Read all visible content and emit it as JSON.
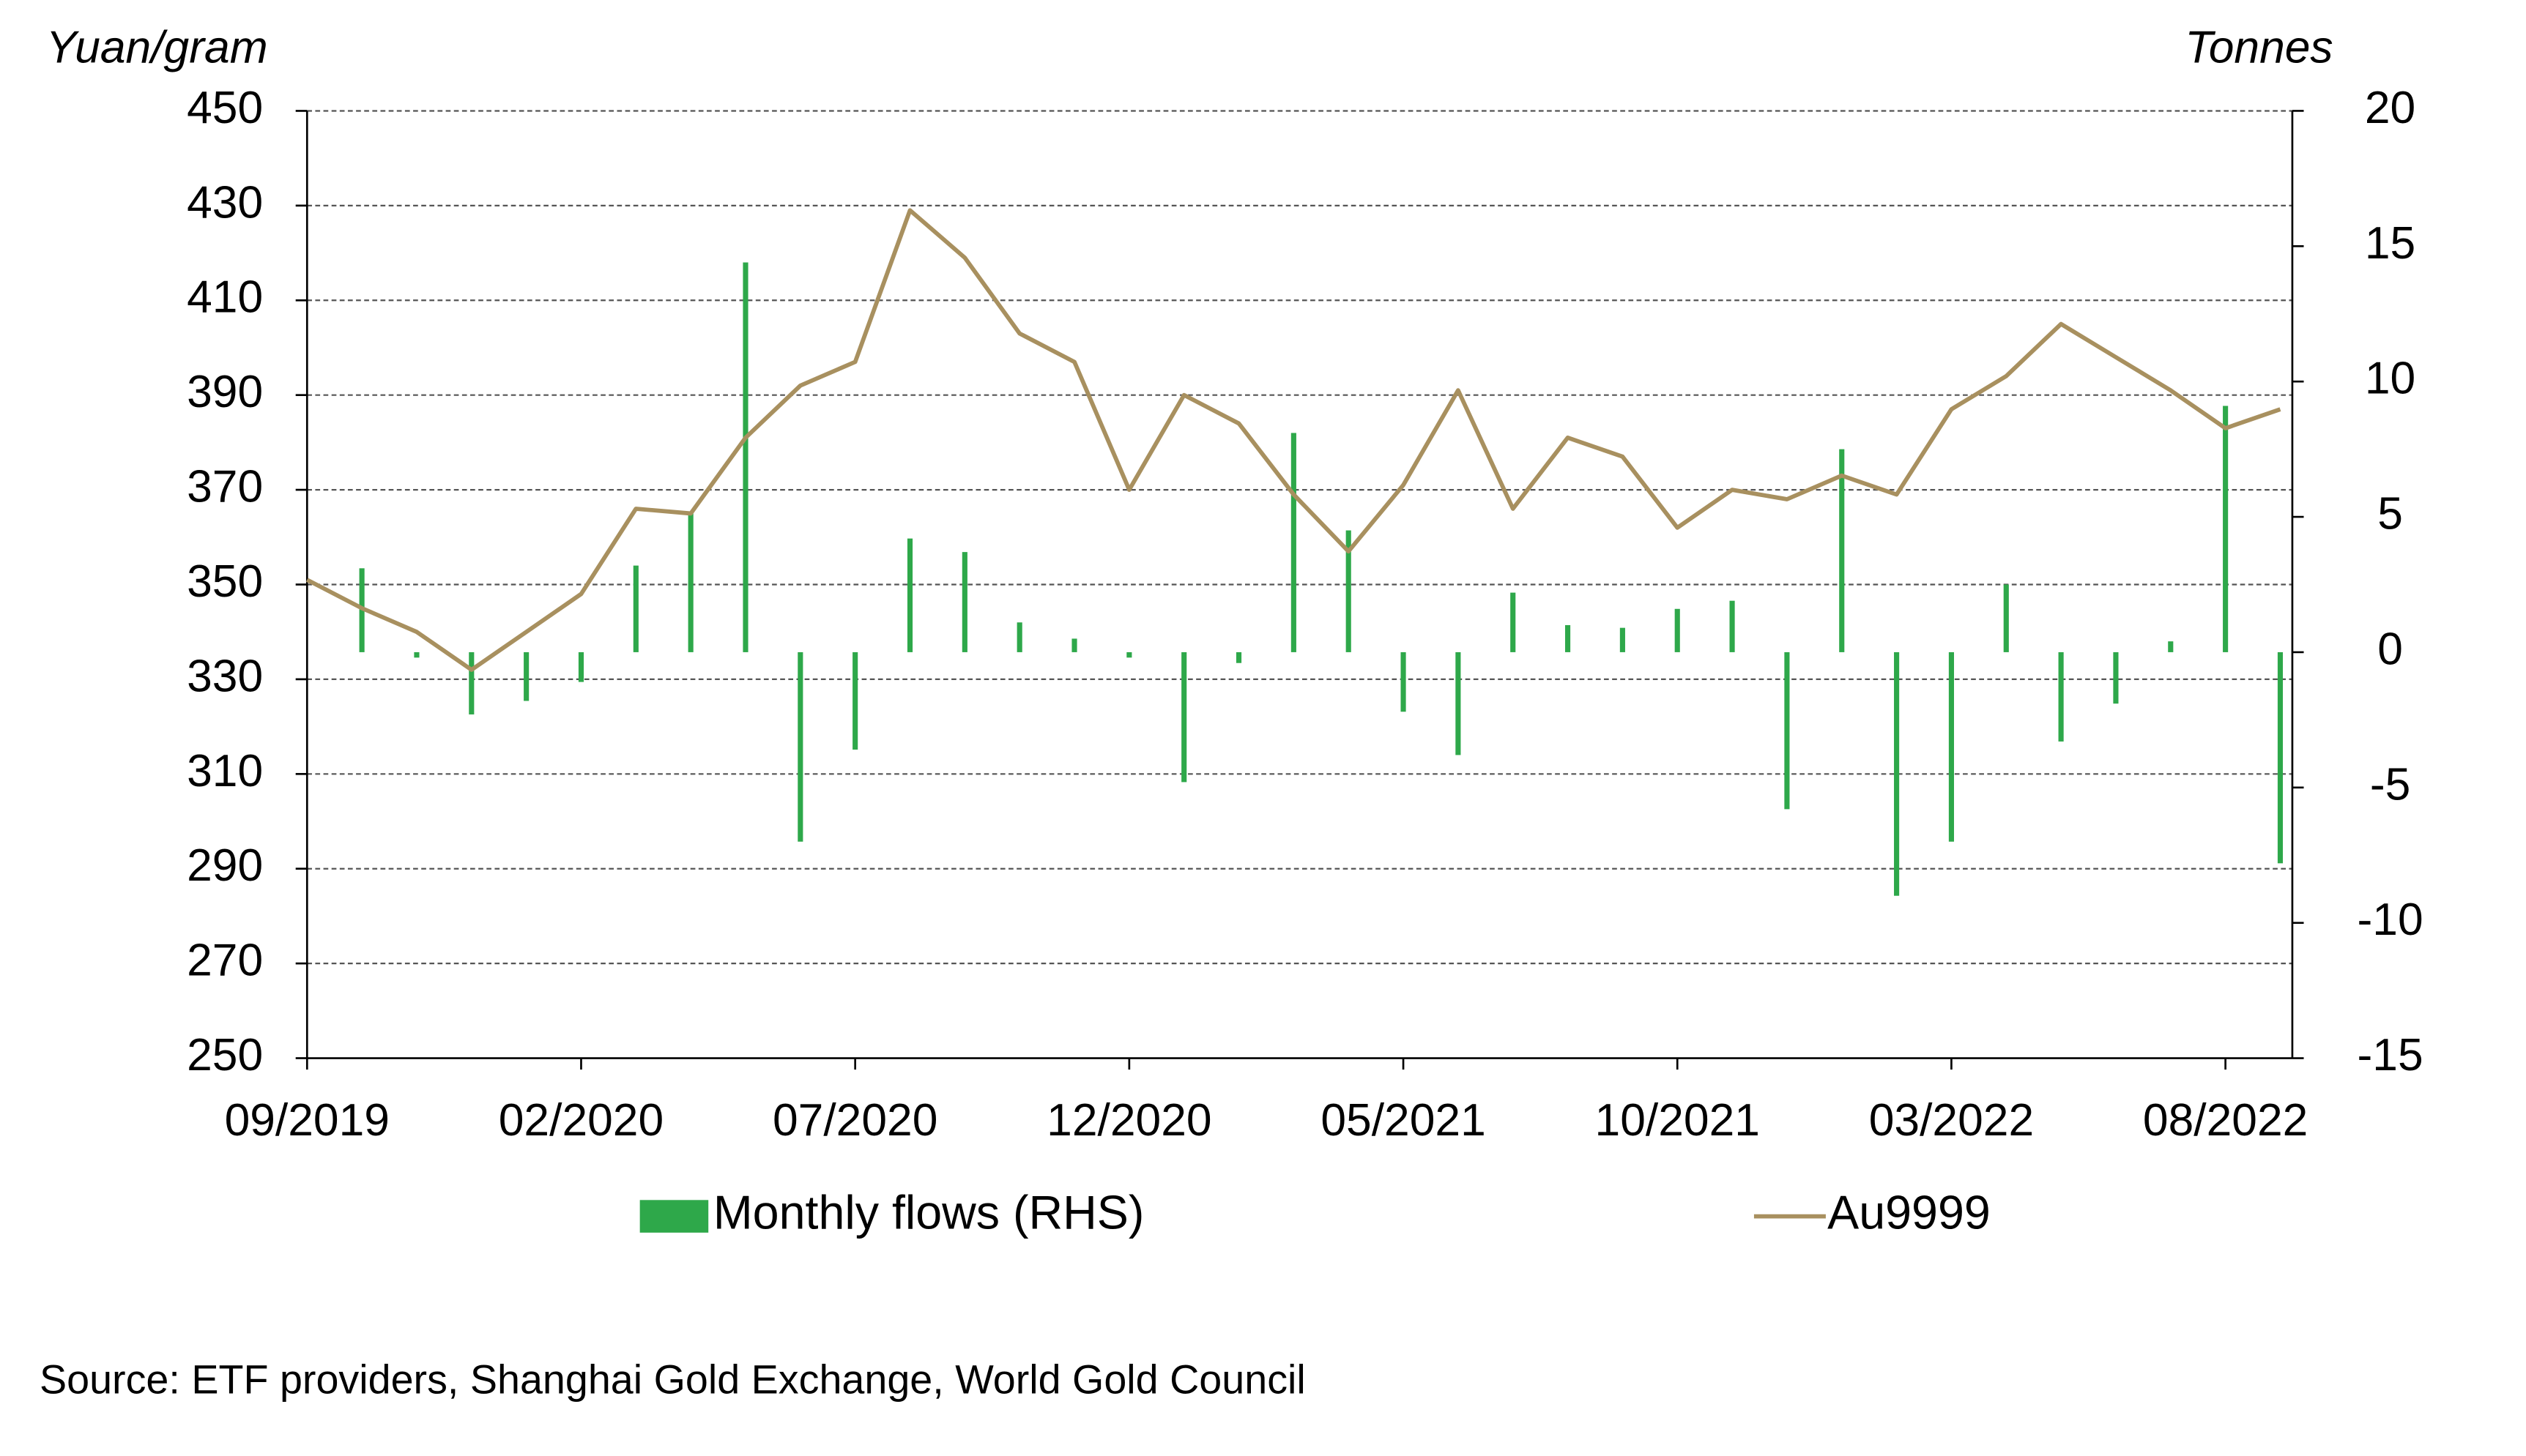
{
  "chart_data": {
    "type": "bar-line",
    "y_label": "Yuan/gram",
    "y2_label": "Tonnes",
    "categories": [
      "09/2019",
      null,
      null,
      null,
      null,
      "02/2020",
      null,
      null,
      null,
      null,
      "07/2020",
      null,
      null,
      null,
      null,
      "12/2020",
      null,
      null,
      null,
      null,
      "05/2021",
      null,
      null,
      null,
      null,
      "10/2021",
      null,
      null,
      null,
      null,
      "03/2022",
      null,
      null,
      null,
      null,
      "08/2022",
      null
    ],
    "series": [
      {
        "name": "Monthly flows (RHS)",
        "type": "bar",
        "axis": "y2",
        "color": "#2ea84a",
        "values": [
          null,
          3.1,
          -0.2,
          -2.3,
          -1.8,
          -1.1,
          3.2,
          5.2,
          14.4,
          -7.0,
          -3.6,
          4.2,
          3.7,
          1.1,
          0.5,
          -0.2,
          -4.8,
          -0.4,
          8.1,
          4.5,
          -2.2,
          -3.8,
          2.2,
          1.0,
          0.9,
          1.6,
          1.9,
          -5.8,
          7.5,
          -9.0,
          -7.0,
          2.5,
          -3.3,
          -1.9,
          0.4,
          9.1,
          -7.8
        ]
      },
      {
        "name": "Au9999",
        "type": "line",
        "axis": "y",
        "color": "#a8905f",
        "values": [
          351,
          345,
          340,
          332,
          340,
          348,
          366,
          365,
          381,
          392,
          397,
          429,
          419,
          403,
          397,
          370,
          390,
          384,
          369,
          357,
          371,
          391,
          366,
          381,
          377,
          362,
          370,
          368,
          373,
          369,
          387,
          394,
          405,
          398,
          391,
          383,
          387
        ]
      }
    ],
    "ylim": [
      250,
      450
    ],
    "yticks": [
      250,
      270,
      290,
      310,
      330,
      350,
      370,
      390,
      410,
      430,
      450
    ],
    "y2lim": [
      -15,
      20
    ],
    "y2ticks": [
      -15,
      -10,
      -5,
      0,
      5,
      10,
      15,
      20
    ],
    "grid": true,
    "source": "Source: ETF providers, Shanghai Gold Exchange,  World Gold Council"
  }
}
